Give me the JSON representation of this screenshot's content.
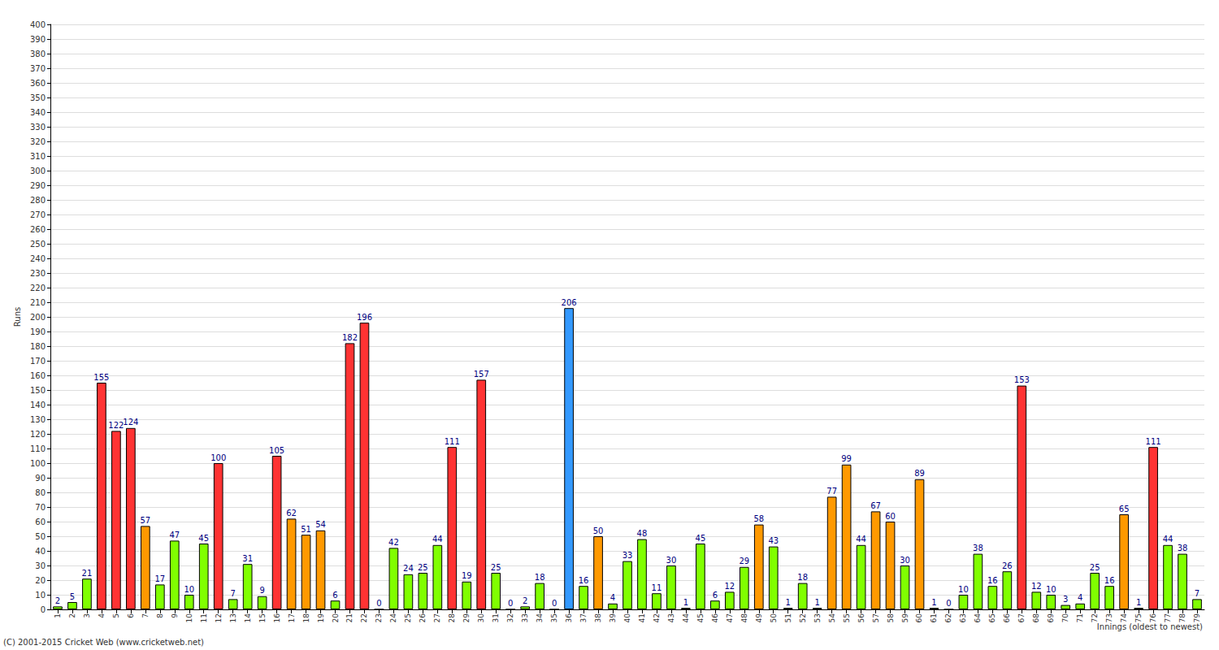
{
  "chart_data": {
    "type": "bar",
    "x_label": "Innings (oldest to newest)",
    "y_label": "Runs",
    "annotations": [
      "(C) 2001-2015 Cricket Web (www.cricketweb.net)"
    ],
    "categories": [
      "1",
      "2",
      "3",
      "4",
      "5",
      "6",
      "7",
      "8",
      "9",
      "10",
      "11",
      "12",
      "13",
      "14",
      "15",
      "16",
      "17",
      "18",
      "19",
      "20",
      "21",
      "22",
      "23",
      "24",
      "25",
      "26",
      "27",
      "28",
      "29",
      "30",
      "31",
      "32",
      "33",
      "34",
      "35",
      "36",
      "37",
      "38",
      "39",
      "40",
      "41",
      "42",
      "43",
      "44",
      "45",
      "46",
      "47",
      "48",
      "49",
      "50",
      "51",
      "52",
      "53",
      "54",
      "55",
      "56",
      "57",
      "58",
      "59",
      "60",
      "61",
      "62",
      "63",
      "64",
      "65",
      "66",
      "67",
      "68",
      "69",
      "70",
      "71",
      "72",
      "73",
      "74",
      "75",
      "76",
      "77",
      "78",
      "79"
    ],
    "values": [
      2,
      5,
      21,
      155,
      122,
      124,
      57,
      17,
      47,
      10,
      45,
      100,
      7,
      31,
      9,
      105,
      62,
      51,
      54,
      6,
      182,
      196,
      0,
      42,
      24,
      25,
      44,
      111,
      19,
      157,
      25,
      0,
      2,
      18,
      0,
      206,
      16,
      50,
      4,
      33,
      48,
      11,
      30,
      1,
      45,
      6,
      12,
      29,
      58,
      43,
      1,
      18,
      1,
      77,
      99,
      44,
      67,
      60,
      30,
      89,
      1,
      0,
      10,
      38,
      16,
      26,
      153,
      12,
      10,
      3,
      4,
      25,
      16,
      65,
      1,
      111,
      44,
      38,
      7
    ],
    "colors": [
      "#80ff00",
      "#80ff00",
      "#80ff00",
      "#ff3333",
      "#ff3333",
      "#ff3333",
      "#ff9900",
      "#80ff00",
      "#80ff00",
      "#80ff00",
      "#80ff00",
      "#ff3333",
      "#80ff00",
      "#80ff00",
      "#80ff00",
      "#ff3333",
      "#ff9900",
      "#ff9900",
      "#ff9900",
      "#80ff00",
      "#ff3333",
      "#ff3333",
      "#80ff00",
      "#80ff00",
      "#80ff00",
      "#80ff00",
      "#80ff00",
      "#ff3333",
      "#80ff00",
      "#ff3333",
      "#80ff00",
      "#80ff00",
      "#80ff00",
      "#80ff00",
      "#80ff00",
      "#3399ff",
      "#80ff00",
      "#ff9900",
      "#80ff00",
      "#80ff00",
      "#80ff00",
      "#80ff00",
      "#80ff00",
      "#80ff00",
      "#80ff00",
      "#80ff00",
      "#80ff00",
      "#80ff00",
      "#ff9900",
      "#80ff00",
      "#80ff00",
      "#80ff00",
      "#80ff00",
      "#ff9900",
      "#ff9900",
      "#80ff00",
      "#ff9900",
      "#ff9900",
      "#80ff00",
      "#ff9900",
      "#80ff00",
      "#80ff00",
      "#80ff00",
      "#80ff00",
      "#80ff00",
      "#80ff00",
      "#ff3333",
      "#80ff00",
      "#80ff00",
      "#80ff00",
      "#80ff00",
      "#80ff00",
      "#80ff00",
      "#ff9900",
      "#80ff00",
      "#ff3333",
      "#80ff00",
      "#80ff00",
      "#80ff00"
    ],
    "ylim": [
      0,
      400
    ],
    "yticks": [
      0,
      10,
      20,
      30,
      40,
      50,
      60,
      70,
      80,
      90,
      100,
      110,
      120,
      130,
      140,
      150,
      160,
      170,
      180,
      190,
      200,
      210,
      220,
      230,
      240,
      250,
      260,
      270,
      280,
      290,
      300,
      310,
      320,
      330,
      340,
      350,
      360,
      370,
      380,
      390,
      400
    ],
    "grid": true,
    "data_labels": true
  }
}
